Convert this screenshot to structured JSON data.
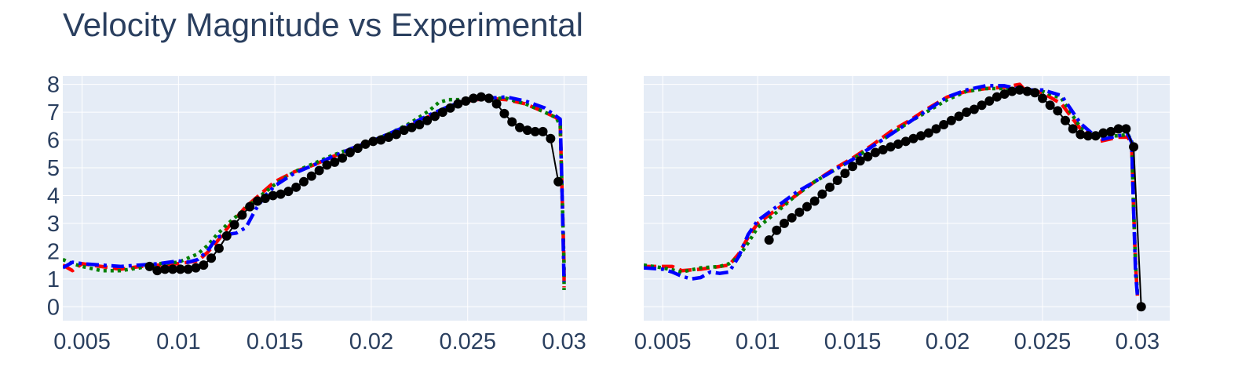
{
  "title": "Velocity Magnitude vs Experimental",
  "colors": {
    "plot_bg": "#e5ecf6",
    "grid": "#ffffff",
    "text": "#2a3f5f",
    "experimental": "#000000",
    "series_red": "#ff0000",
    "series_green": "#008000",
    "series_blue": "#0000ff"
  },
  "chart_data": [
    {
      "type": "line",
      "title": "",
      "xlabel": "",
      "ylabel": "",
      "xlim": [
        0.004,
        0.0312
      ],
      "ylim": [
        -0.5,
        8.3
      ],
      "x_ticks": [
        0.005,
        0.01,
        0.015,
        0.02,
        0.025,
        0.03
      ],
      "x_tick_labels": [
        "0.005",
        "0.01",
        "0.015",
        "0.02",
        "0.025",
        "0.03"
      ],
      "y_ticks": [
        0,
        1,
        2,
        3,
        4,
        5,
        6,
        7,
        8
      ],
      "y_tick_labels": [
        "0",
        "1",
        "2",
        "3",
        "4",
        "5",
        "6",
        "7",
        "8"
      ],
      "grid": true,
      "series": [
        {
          "color": "#ff0000",
          "dash": "dash",
          "x": [
            0.004,
            0.0045,
            0.005,
            0.006,
            0.007,
            0.008,
            0.009,
            0.01,
            0.011,
            0.0115,
            0.012,
            0.0125,
            0.013,
            0.0135,
            0.014,
            0.015,
            0.016,
            0.017,
            0.018,
            0.019,
            0.02,
            0.021,
            0.022,
            0.023,
            0.024,
            0.025,
            0.026,
            0.027,
            0.028,
            0.029,
            0.0296,
            0.0298,
            0.0299,
            0.03,
            0.03
          ],
          "y": [
            1.5,
            1.3,
            1.55,
            1.45,
            1.35,
            1.45,
            1.5,
            1.55,
            1.65,
            1.95,
            2.35,
            2.8,
            3.2,
            3.6,
            3.9,
            4.5,
            4.85,
            5.1,
            5.4,
            5.7,
            5.95,
            6.2,
            6.5,
            6.85,
            7.15,
            7.4,
            7.5,
            7.45,
            7.3,
            7.0,
            6.8,
            6.6,
            4.0,
            1.5,
            0.7
          ]
        },
        {
          "color": "#008000",
          "dash": "dot",
          "x": [
            0.004,
            0.0045,
            0.005,
            0.006,
            0.007,
            0.008,
            0.009,
            0.01,
            0.0105,
            0.011,
            0.0115,
            0.012,
            0.0125,
            0.013,
            0.014,
            0.015,
            0.016,
            0.017,
            0.018,
            0.019,
            0.02,
            0.021,
            0.022,
            0.023,
            0.0235,
            0.024,
            0.025,
            0.026,
            0.027,
            0.028,
            0.029,
            0.0296,
            0.0298,
            0.0299,
            0.03,
            0.03
          ],
          "y": [
            1.7,
            1.55,
            1.45,
            1.3,
            1.3,
            1.4,
            1.55,
            1.6,
            1.75,
            1.9,
            2.2,
            2.6,
            2.95,
            3.25,
            3.85,
            4.4,
            4.85,
            5.15,
            5.45,
            5.7,
            5.95,
            6.25,
            6.6,
            7.05,
            7.35,
            7.45,
            7.45,
            7.5,
            7.5,
            7.3,
            7.0,
            6.8,
            6.5,
            4.0,
            1.5,
            0.6
          ]
        },
        {
          "color": "#0000ff",
          "dash": "dashdot",
          "x": [
            0.004,
            0.0045,
            0.005,
            0.006,
            0.007,
            0.008,
            0.009,
            0.01,
            0.0105,
            0.011,
            0.0115,
            0.012,
            0.0125,
            0.013,
            0.0135,
            0.014,
            0.0145,
            0.015,
            0.016,
            0.017,
            0.018,
            0.019,
            0.02,
            0.021,
            0.022,
            0.023,
            0.024,
            0.025,
            0.026,
            0.027,
            0.028,
            0.029,
            0.0296,
            0.0298,
            0.0299,
            0.03
          ],
          "y": [
            1.4,
            1.6,
            1.55,
            1.5,
            1.45,
            1.5,
            1.55,
            1.65,
            1.6,
            1.7,
            2.0,
            2.5,
            2.6,
            2.65,
            2.85,
            3.5,
            4.0,
            4.35,
            4.8,
            5.1,
            5.4,
            5.7,
            5.95,
            6.25,
            6.55,
            6.9,
            7.2,
            7.45,
            7.5,
            7.55,
            7.4,
            7.15,
            6.85,
            6.75,
            4.0,
            0.9
          ]
        },
        {
          "color": "#000000",
          "dash": "solid",
          "markers": true,
          "x": [
            0.0085,
            0.0089,
            0.0093,
            0.0097,
            0.0101,
            0.0105,
            0.0109,
            0.0113,
            0.0117,
            0.0121,
            0.0125,
            0.0129,
            0.0133,
            0.0137,
            0.0141,
            0.0145,
            0.0149,
            0.0153,
            0.0157,
            0.0161,
            0.0165,
            0.0169,
            0.0173,
            0.0177,
            0.0181,
            0.0185,
            0.0189,
            0.0193,
            0.0197,
            0.0201,
            0.0205,
            0.0209,
            0.0213,
            0.0217,
            0.0221,
            0.0225,
            0.0229,
            0.0233,
            0.0237,
            0.0241,
            0.0245,
            0.0249,
            0.0253,
            0.0257,
            0.0261,
            0.0265,
            0.0269,
            0.0273,
            0.0277,
            0.0281,
            0.0285,
            0.0289,
            0.0293,
            0.0297
          ],
          "y": [
            1.45,
            1.3,
            1.35,
            1.35,
            1.35,
            1.35,
            1.4,
            1.5,
            1.75,
            2.1,
            2.55,
            2.95,
            3.3,
            3.6,
            3.8,
            3.9,
            4.0,
            4.05,
            4.15,
            4.3,
            4.5,
            4.7,
            4.9,
            5.1,
            5.2,
            5.35,
            5.55,
            5.7,
            5.85,
            5.95,
            6.0,
            6.1,
            6.2,
            6.35,
            6.45,
            6.55,
            6.7,
            6.85,
            7.0,
            7.15,
            7.3,
            7.4,
            7.5,
            7.55,
            7.5,
            7.3,
            6.95,
            6.65,
            6.45,
            6.35,
            6.3,
            6.3,
            6.05,
            4.5
          ]
        }
      ]
    },
    {
      "type": "line",
      "title": "",
      "xlabel": "",
      "ylabel": "",
      "xlim": [
        0.004,
        0.0317
      ],
      "ylim": [
        -0.5,
        8.3
      ],
      "x_ticks": [
        0.005,
        0.01,
        0.015,
        0.02,
        0.025,
        0.03
      ],
      "x_tick_labels": [
        "0.005",
        "0.01",
        "0.015",
        "0.02",
        "0.025",
        "0.03"
      ],
      "y_ticks": [
        0,
        1,
        2,
        3,
        4,
        5,
        6,
        7,
        8
      ],
      "y_tick_labels": [],
      "grid": true,
      "series": [
        {
          "color": "#ff0000",
          "dash": "dash",
          "x": [
            0.004,
            0.005,
            0.0055,
            0.006,
            0.007,
            0.008,
            0.0085,
            0.009,
            0.0095,
            0.01,
            0.011,
            0.012,
            0.013,
            0.014,
            0.015,
            0.016,
            0.017,
            0.018,
            0.019,
            0.02,
            0.021,
            0.022,
            0.023,
            0.0238,
            0.024,
            0.025,
            0.026,
            0.027,
            0.028,
            0.029,
            0.0295,
            0.0297,
            0.0298,
            0.0299,
            0.03
          ],
          "y": [
            1.45,
            1.45,
            1.45,
            1.3,
            1.35,
            1.45,
            1.5,
            1.9,
            2.5,
            3.0,
            3.5,
            4.0,
            4.5,
            4.95,
            5.35,
            5.8,
            6.3,
            6.7,
            7.15,
            7.55,
            7.75,
            7.85,
            7.9,
            8.0,
            7.85,
            7.7,
            7.3,
            6.4,
            5.95,
            6.1,
            6.1,
            5.8,
            3.5,
            1.5,
            0.4
          ]
        },
        {
          "color": "#008000",
          "dash": "dot",
          "x": [
            0.004,
            0.005,
            0.006,
            0.007,
            0.008,
            0.0085,
            0.009,
            0.0095,
            0.01,
            0.011,
            0.012,
            0.013,
            0.014,
            0.015,
            0.016,
            0.017,
            0.018,
            0.019,
            0.02,
            0.021,
            0.022,
            0.023,
            0.024,
            0.025,
            0.026,
            0.027,
            0.028,
            0.029,
            0.0295,
            0.0297,
            0.0298,
            0.0299,
            0.03
          ],
          "y": [
            1.5,
            1.4,
            1.25,
            1.4,
            1.45,
            1.55,
            1.8,
            2.3,
            2.85,
            3.4,
            4.0,
            4.5,
            4.9,
            5.3,
            5.75,
            6.2,
            6.65,
            7.05,
            7.45,
            7.75,
            7.85,
            7.85,
            7.8,
            7.75,
            7.5,
            6.45,
            6.15,
            6.15,
            6.2,
            5.95,
            3.5,
            1.5,
            0.5
          ]
        },
        {
          "color": "#0000ff",
          "dash": "dashdot",
          "x": [
            0.004,
            0.005,
            0.0055,
            0.006,
            0.0065,
            0.007,
            0.0075,
            0.008,
            0.0085,
            0.009,
            0.0095,
            0.01,
            0.011,
            0.012,
            0.013,
            0.014,
            0.015,
            0.016,
            0.017,
            0.018,
            0.019,
            0.02,
            0.021,
            0.022,
            0.023,
            0.024,
            0.025,
            0.026,
            0.027,
            0.028,
            0.029,
            0.0295,
            0.0297,
            0.0298,
            0.0299,
            0.03
          ],
          "y": [
            1.4,
            1.35,
            1.25,
            1.1,
            1.0,
            1.05,
            1.25,
            1.2,
            1.25,
            1.8,
            2.6,
            3.1,
            3.6,
            4.1,
            4.5,
            4.9,
            5.3,
            5.75,
            6.2,
            6.65,
            7.1,
            7.55,
            7.8,
            7.95,
            7.95,
            7.8,
            7.8,
            7.6,
            6.6,
            6.0,
            6.15,
            6.2,
            5.9,
            3.5,
            1.2,
            0.4
          ]
        },
        {
          "color": "#000000",
          "dash": "solid",
          "markers": true,
          "x": [
            0.0106,
            0.011,
            0.0114,
            0.0118,
            0.0122,
            0.0126,
            0.013,
            0.0134,
            0.0138,
            0.0142,
            0.0146,
            0.015,
            0.0154,
            0.0158,
            0.0162,
            0.0166,
            0.017,
            0.0174,
            0.0178,
            0.0182,
            0.0186,
            0.019,
            0.0194,
            0.0198,
            0.0202,
            0.0206,
            0.021,
            0.0214,
            0.0218,
            0.0222,
            0.0226,
            0.023,
            0.0234,
            0.0238,
            0.0242,
            0.0246,
            0.025,
            0.0254,
            0.0258,
            0.0262,
            0.0266,
            0.027,
            0.0274,
            0.0278,
            0.0282,
            0.0286,
            0.029,
            0.0294,
            0.0298,
            0.0302
          ],
          "y": [
            2.4,
            2.75,
            3.0,
            3.2,
            3.4,
            3.6,
            3.8,
            4.05,
            4.3,
            4.55,
            4.8,
            5.05,
            5.25,
            5.4,
            5.55,
            5.65,
            5.75,
            5.85,
            5.95,
            6.05,
            6.15,
            6.25,
            6.4,
            6.55,
            6.7,
            6.85,
            7.0,
            7.1,
            7.25,
            7.4,
            7.55,
            7.65,
            7.75,
            7.8,
            7.75,
            7.7,
            7.5,
            7.25,
            7.05,
            6.7,
            6.4,
            6.2,
            6.15,
            6.15,
            6.25,
            6.3,
            6.4,
            6.4,
            5.75,
            0.0
          ]
        }
      ]
    }
  ]
}
